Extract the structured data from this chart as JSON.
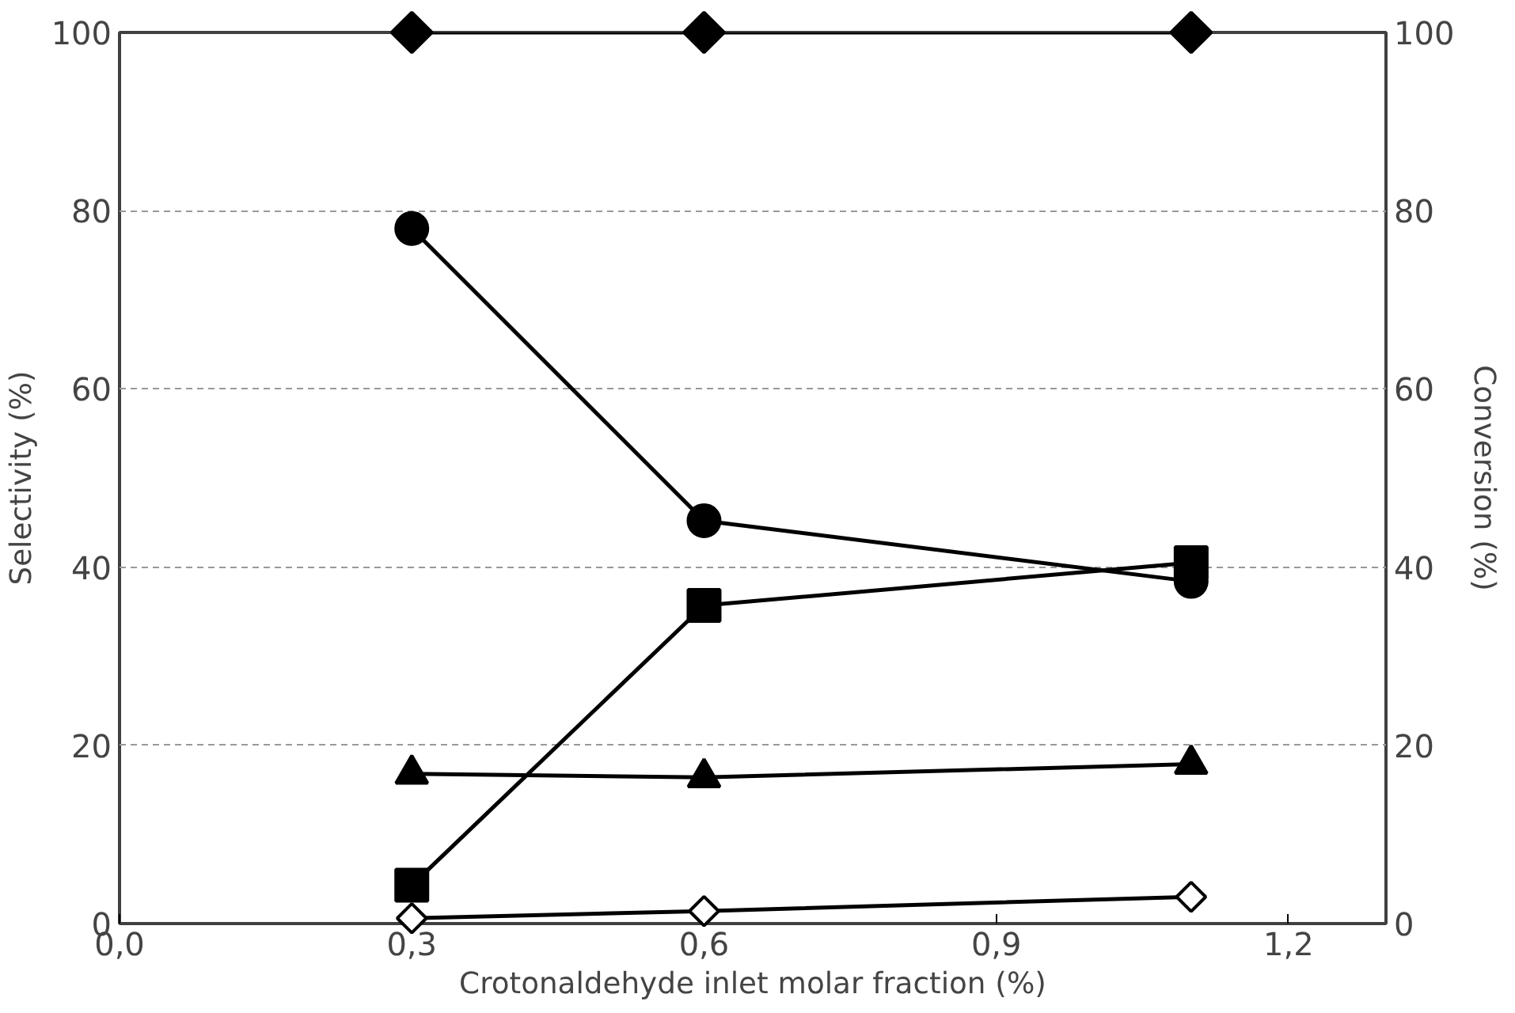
{
  "chart_data": {
    "type": "line",
    "xlabel": "Crotonaldehyde inlet molar fraction (%)",
    "ylabel": "Selectivity (%)",
    "y2label": "Conversion (%)",
    "xlim": [
      0,
      1.3
    ],
    "xticks": [
      {
        "value": 0,
        "label": "0,0"
      },
      {
        "value": 0.3,
        "label": "0,3"
      },
      {
        "value": 0.6,
        "label": "0,6"
      },
      {
        "value": 0.9,
        "label": "0,9"
      },
      {
        "value": 1.2,
        "label": "1,2"
      }
    ],
    "ylim": [
      0,
      100
    ],
    "yticks": [
      0,
      20,
      40,
      60,
      80,
      100
    ],
    "y2lim": [
      0,
      100
    ],
    "y2ticks": [
      0,
      20,
      40,
      60,
      80,
      100
    ],
    "grid": "y",
    "line_style": "solid",
    "x": [
      0.3,
      0.6,
      1.1
    ],
    "series": [
      {
        "color": "#000000",
        "marker": "diamond",
        "values": [
          100,
          100,
          100
        ]
      },
      {
        "color": "#000000",
        "marker": "circle",
        "values": [
          78.0,
          45.2,
          38.4
        ]
      },
      {
        "color": "#000000",
        "marker": "square",
        "values": [
          4.3,
          35.7,
          40.5
        ]
      },
      {
        "color": "#000000",
        "marker": "triangle",
        "values": [
          16.8,
          16.4,
          17.9
        ]
      },
      {
        "color": "#000000",
        "marker": "diamond_open",
        "values": [
          0.6,
          1.4,
          3.0
        ]
      }
    ]
  }
}
